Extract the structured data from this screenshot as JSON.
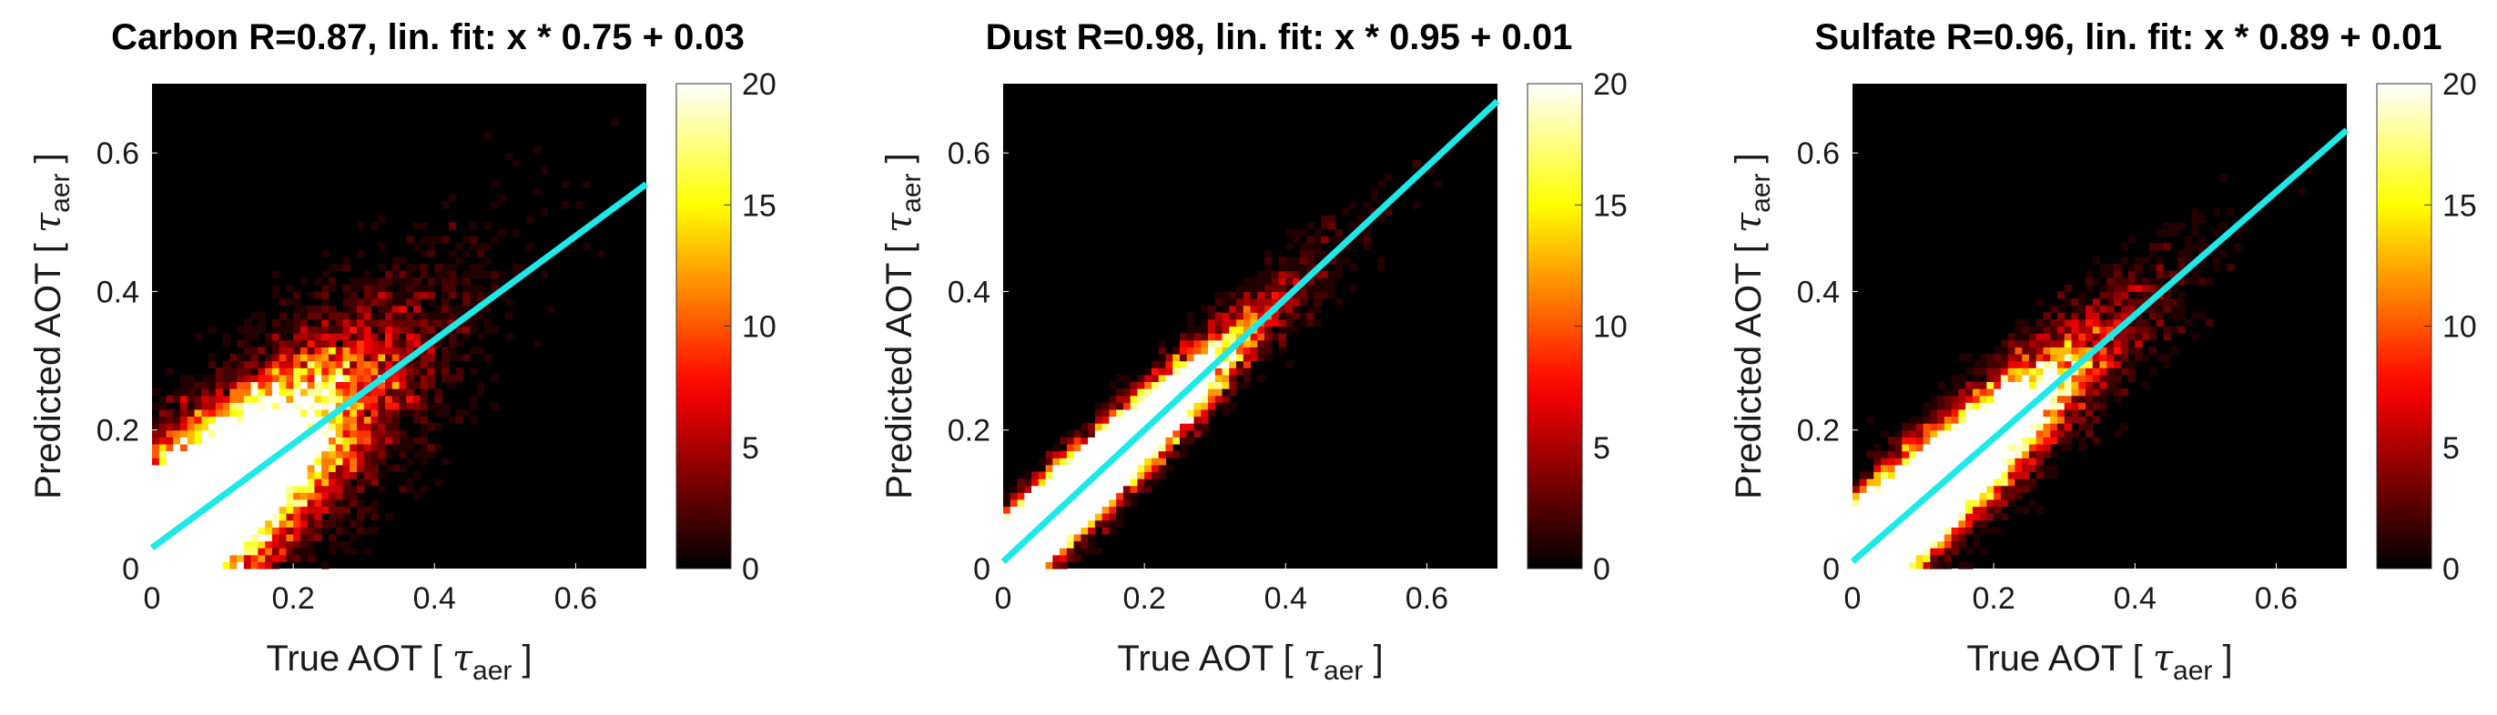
{
  "chart_data": [
    {
      "type": "heatmap",
      "title": "Carbon R=0.87, lin. fit: x * 0.75 + 0.03",
      "xlabel": {
        "main": "True AOT [ ",
        "symbol": "τ",
        "sub": "aer",
        "end": " ]"
      },
      "ylabel": {
        "main": "Predicted AOT [ ",
        "symbol": "τ",
        "sub": "aer",
        "end": " ]"
      },
      "xlim": [
        0,
        0.7
      ],
      "ylim": [
        0,
        0.7
      ],
      "xticks": [
        "0",
        "0.2",
        "0.4",
        "0.6"
      ],
      "xtick_values": [
        0,
        0.2,
        0.4,
        0.6
      ],
      "yticks": [
        "0",
        "0.2",
        "0.4",
        "0.6"
      ],
      "ytick_values": [
        0,
        0.2,
        0.4,
        0.6
      ],
      "colorbar": {
        "range": [
          0,
          20
        ],
        "ticks": [
          "0",
          "5",
          "10",
          "15",
          "20"
        ],
        "tick_values": [
          0,
          5,
          10,
          15,
          20
        ],
        "colormap": "hot"
      },
      "fit": {
        "slope": 0.75,
        "intercept": 0.03,
        "color": "#1de9e9"
      },
      "density_spread": 0.065
    },
    {
      "type": "heatmap",
      "title": "Dust R=0.98, lin. fit: x * 0.95 + 0.01",
      "xlabel": {
        "main": "True AOT [ ",
        "symbol": "τ",
        "sub": "aer",
        "end": " ]"
      },
      "ylabel": {
        "main": "Predicted AOT [ ",
        "symbol": "τ",
        "sub": "aer",
        "end": " ]"
      },
      "xlim": [
        0,
        0.7
      ],
      "ylim": [
        0,
        0.7
      ],
      "xticks": [
        "0",
        "0.2",
        "0.4",
        "0.6"
      ],
      "xtick_values": [
        0,
        0.2,
        0.4,
        0.6
      ],
      "yticks": [
        "0",
        "0.2",
        "0.4",
        "0.6"
      ],
      "ytick_values": [
        0,
        0.2,
        0.4,
        0.6
      ],
      "colorbar": {
        "range": [
          0,
          20
        ],
        "ticks": [
          "0",
          "5",
          "10",
          "15",
          "20"
        ],
        "tick_values": [
          0,
          5,
          10,
          15,
          20
        ],
        "colormap": "hot"
      },
      "fit": {
        "slope": 0.95,
        "intercept": 0.01,
        "color": "#1de9e9"
      },
      "density_spread": 0.028
    },
    {
      "type": "heatmap",
      "title": "Sulfate R=0.96, lin. fit: x * 0.89 + 0.01",
      "xlabel": {
        "main": "True AOT [ ",
        "symbol": "τ",
        "sub": "aer",
        "end": " ]"
      },
      "ylabel": {
        "main": "Predicted AOT [ ",
        "symbol": "τ",
        "sub": "aer",
        "end": " ]"
      },
      "xlim": [
        0,
        0.7
      ],
      "ylim": [
        0,
        0.7
      ],
      "xticks": [
        "0",
        "0.2",
        "0.4",
        "0.6"
      ],
      "xtick_values": [
        0,
        0.2,
        0.4,
        0.6
      ],
      "yticks": [
        "0",
        "0.2",
        "0.4",
        "0.6"
      ],
      "ytick_values": [
        0,
        0.2,
        0.4,
        0.6
      ],
      "colorbar": {
        "range": [
          0,
          20
        ],
        "ticks": [
          "0",
          "5",
          "10",
          "15",
          "20"
        ],
        "tick_values": [
          0,
          5,
          10,
          15,
          20
        ],
        "colormap": "hot"
      },
      "fit": {
        "slope": 0.89,
        "intercept": 0.01,
        "color": "#1de9e9"
      },
      "density_spread": 0.04
    }
  ]
}
